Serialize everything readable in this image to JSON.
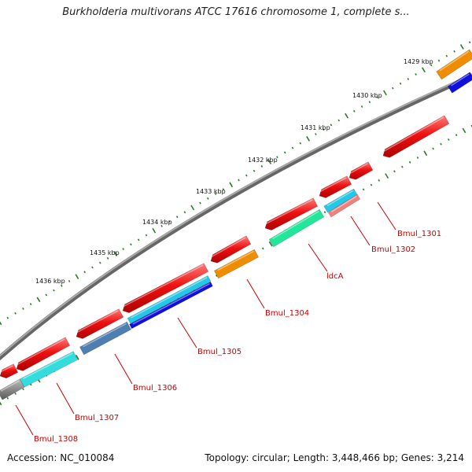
{
  "title": "Burkholderia multivorans ATCC 17616 chromosome 1, complete s...",
  "footer": {
    "accession": "Accession: NC_010084",
    "summary": "Topology: circular; Length: 3,448,466 bp; Genes: 3,214"
  },
  "kbp_ticks": [
    "1429 kbp",
    "1430 kbp",
    "1431 kbp",
    "1432 kbp",
    "1433 kbp",
    "1434 kbp",
    "1435 kbp",
    "1436 kbp"
  ],
  "gene_labels": [
    "Bmul_1301",
    "Bmul_1302",
    "ldcA",
    "Bmul_1304",
    "Bmul_1305",
    "Bmul_1306",
    "Bmul_1307",
    "Bmul_1308"
  ],
  "colors": {
    "cds": "#ee1111",
    "backbone": "#888888",
    "tick": "#2a7a2a",
    "label": "#cc0000",
    "orange": "#f08c00",
    "blue": "#1010dd",
    "cyan": "#22c8e8",
    "teal": "#33dddd",
    "green": "#22e69a",
    "steel": "#4f7fb0",
    "pink": "#f08080",
    "grey": "#777777"
  }
}
